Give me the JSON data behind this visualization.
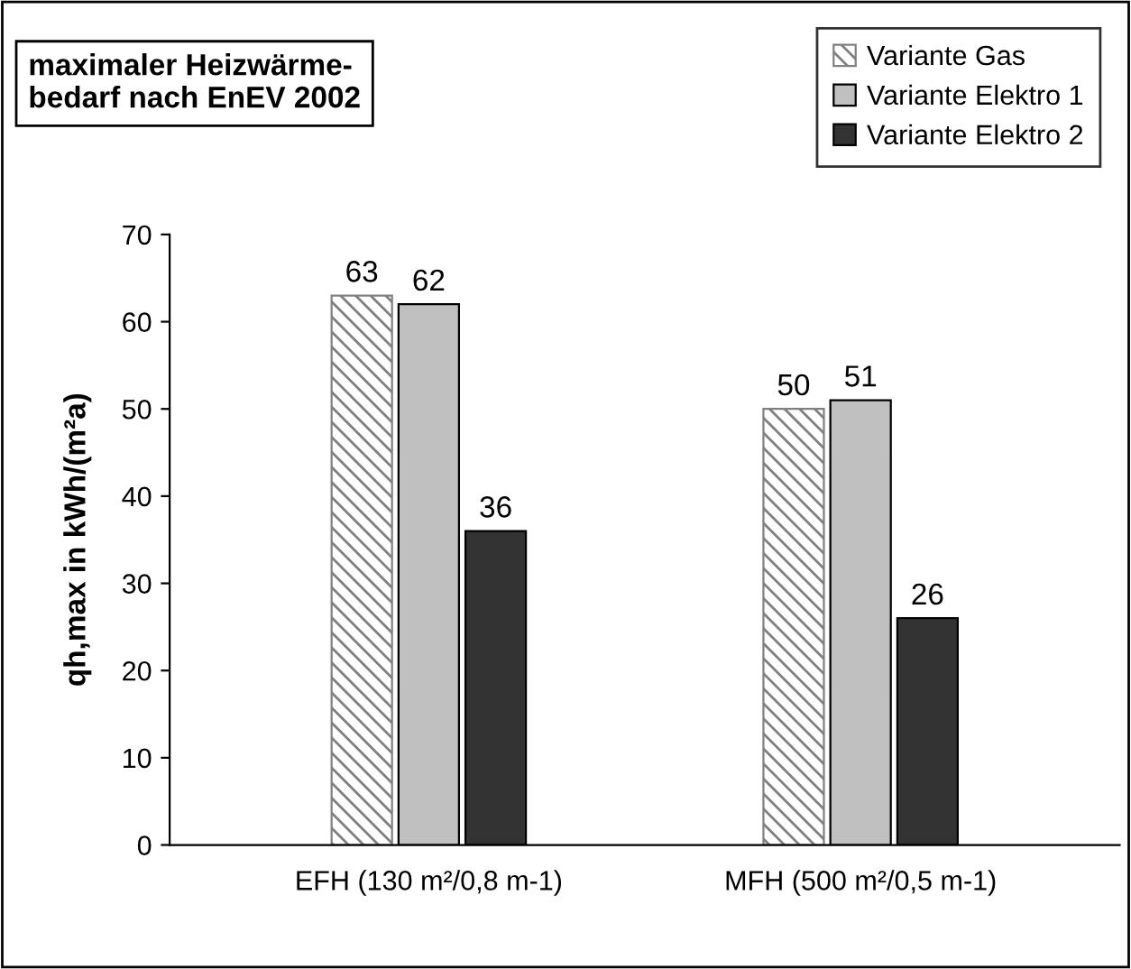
{
  "chart_data": {
    "type": "bar",
    "title": "maximaler Heizwärme-\nbedarf nach EnEV 2002",
    "ylabel": "qh,max in kWh/(m²a)",
    "categories": [
      "EFH (130 m²/0,8 m-1)",
      "MFH (500 m²/0,5 m-1)"
    ],
    "series": [
      {
        "name": "Variante Gas",
        "color": "#808080",
        "values": [
          63,
          50
        ]
      },
      {
        "name": "Variante Elektro 1",
        "color": "#c0c0c0",
        "values": [
          62,
          51
        ]
      },
      {
        "name": "Variante Elektro 2",
        "color": "#333333",
        "values": [
          36,
          26
        ]
      }
    ],
    "ylim": [
      0,
      70
    ],
    "yticks": [
      0,
      10,
      20,
      30,
      40,
      50,
      60,
      70
    ],
    "data_labels": true,
    "grid": false,
    "legend": "top right"
  }
}
